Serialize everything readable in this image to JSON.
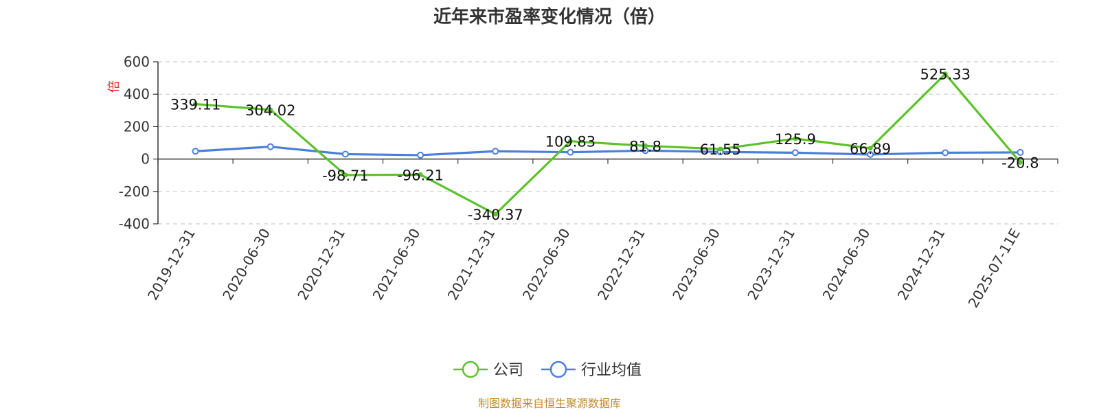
{
  "chart_data": {
    "type": "line",
    "title": "近年来市盈率变化情况（倍）",
    "ylabel": "倍",
    "ylim": [
      -400,
      600
    ],
    "yticks": [
      "600",
      "400",
      "200",
      "0",
      "-200",
      "-400"
    ],
    "grid": true,
    "legend_position": "bottom-center",
    "categories": [
      "2019-12-31",
      "2020-06-30",
      "2020-12-31",
      "2021-06-30",
      "2021-12-31",
      "2022-06-30",
      "2022-12-31",
      "2023-06-30",
      "2023-12-31",
      "2024-06-30",
      "2024-12-31",
      "2025-07-11E"
    ],
    "series": [
      {
        "name": "公司",
        "color": "#5cc22a",
        "values": [
          339.11,
          304.02,
          -98.71,
          -96.21,
          -340.37,
          109.83,
          81.8,
          61.55,
          125.9,
          66.89,
          525.33,
          -20.8
        ],
        "labels": [
          "339.11",
          "304.02",
          "-98.71",
          "-96.21",
          "-340.37",
          "109.83",
          "81.8",
          "61.55",
          "125.9",
          "66.89",
          "525.33",
          "-20.8"
        ]
      },
      {
        "name": "行业均值",
        "color": "#4a7fd9",
        "values": [
          48,
          76,
          30,
          24,
          48,
          42,
          52,
          44,
          39,
          28,
          39,
          41
        ]
      }
    ],
    "source": "制图数据来自恒生聚源数据库"
  }
}
